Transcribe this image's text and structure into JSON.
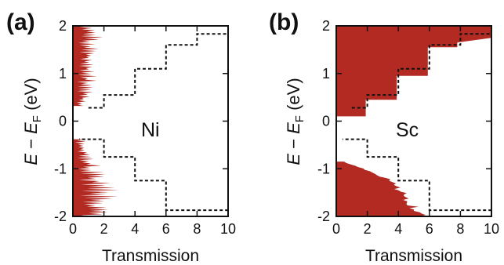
{
  "figure": {
    "y_label": {
      "E": "E",
      "dash": " − ",
      "E2": "E",
      "sub": "F",
      "unit": " (eV)"
    }
  },
  "chart_data": [
    {
      "type": "area",
      "panel_label": "(a)",
      "element": "Ni",
      "xlabel": "Transmission",
      "xlim": [
        0,
        10
      ],
      "ylim": [
        -2,
        2
      ],
      "xticks": [
        0,
        2,
        4,
        6,
        8,
        10
      ],
      "yticks": [
        -2,
        -1,
        0,
        1,
        2
      ],
      "color": "#b22a22",
      "dashed_step_series": {
        "x": [
          1,
          1,
          2,
          2,
          4,
          4,
          6,
          6,
          8,
          8,
          10,
          10,
          9.5,
          9.5,
          6,
          6,
          4,
          4,
          2,
          2,
          0.4,
          0.4
        ],
        "y": [
          0.28,
          0.28,
          0.28,
          0.55,
          0.55,
          1.1,
          1.1,
          1.6,
          1.6,
          1.83,
          1.83,
          -1.87,
          -1.87,
          -1.87,
          -1.87,
          -1.25,
          -1.25,
          -0.75,
          -0.75,
          -0.38,
          -0.38,
          -0.38
        ]
      },
      "transmission_regions": [
        {
          "y": [
            0.32,
            0.6,
            1.0,
            1.4,
            1.8,
            2.0
          ],
          "x_max": [
            0.9,
            1.5,
            1.6,
            1.8,
            2.0,
            1.8
          ]
        },
        {
          "y": [
            -2.0,
            -1.8,
            -1.5,
            -1.1,
            -0.7,
            -0.38
          ],
          "x_max": [
            2.0,
            2.6,
            3.1,
            2.2,
            1.6,
            0.8
          ]
        }
      ]
    },
    {
      "type": "area",
      "panel_label": "(b)",
      "element": "Sc",
      "xlabel": "Transmission",
      "xlim": [
        0,
        10
      ],
      "ylim": [
        -2,
        2
      ],
      "xticks": [
        0,
        2,
        4,
        6,
        8,
        10
      ],
      "yticks": [
        -2,
        -1,
        0,
        1,
        2
      ],
      "color": "#b22a22",
      "dashed_step_series": {
        "x": [
          1,
          1,
          2,
          2,
          4,
          4,
          6,
          6,
          8,
          8,
          10,
          10,
          9.5,
          9.5,
          6,
          6,
          4,
          4,
          2,
          2,
          0.4,
          0.4
        ],
        "y": [
          0.28,
          0.28,
          0.28,
          0.55,
          0.55,
          1.1,
          1.1,
          1.6,
          1.6,
          1.83,
          1.83,
          -1.87,
          -1.87,
          -1.87,
          -1.87,
          -1.25,
          -1.25,
          -0.75,
          -0.75,
          -0.38,
          -0.38,
          -0.38
        ]
      },
      "transmission_steps": {
        "x": [
          0,
          1.9,
          1.9,
          3.9,
          3.9,
          5.9,
          5.9,
          7.8,
          7.8,
          10
        ],
        "y": [
          0.1,
          0.1,
          0.45,
          0.45,
          0.95,
          0.95,
          1.55,
          1.55,
          1.65,
          1.75
        ]
      },
      "lower_region": {
        "y": [
          -2.0,
          -1.6,
          -1.25,
          -1.0,
          -0.85
        ],
        "x_max": [
          5.9,
          4.9,
          3.7,
          1.8,
          0.5
        ]
      }
    }
  ]
}
